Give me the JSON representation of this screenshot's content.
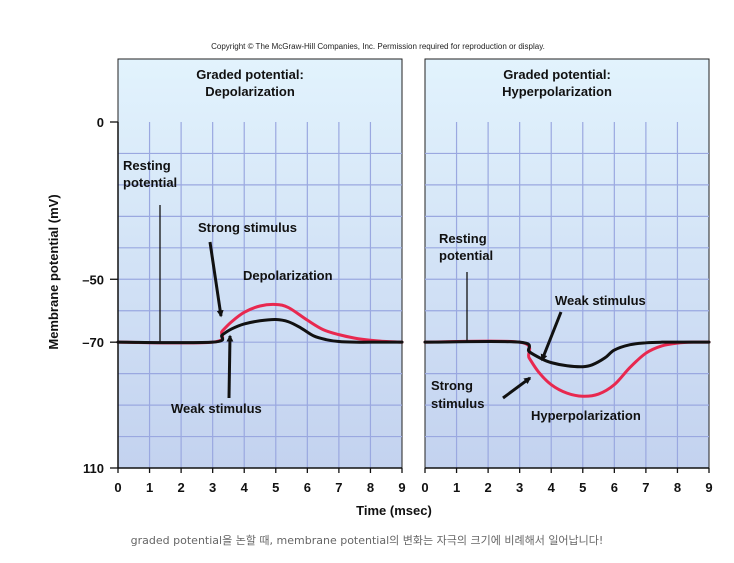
{
  "copyright": "Copyright © The McGraw-Hill Companies, Inc. Permission required for reproduction or display.",
  "caption": "graded potential을 논할 때, membrane potential의 변화는 자극의 크기에 비례해서 일어납니다!",
  "colors": {
    "strong": "#e8284f",
    "weak": "#111111",
    "grid": "#9aa8e0",
    "panel_top": "#e2f3fd",
    "panel_bottom": "#c3d2ef"
  },
  "chart_data": [
    {
      "type": "line",
      "title_lines": [
        "Graded potential:",
        "Depolarization"
      ],
      "xlabel": "Time (msec)",
      "ylabel": "Membrane potential (mV)",
      "xlim": [
        0,
        9
      ],
      "ylim": [
        -110,
        0
      ],
      "x_ticks": [
        "0",
        "1",
        "2",
        "3",
        "4",
        "5",
        "6",
        "7",
        "8",
        "9"
      ],
      "y_ticks": [
        {
          "value": 0,
          "label": "0"
        },
        {
          "value": -50,
          "label": "–50"
        },
        {
          "value": -70,
          "label": "–70"
        },
        {
          "value": -110,
          "label": "110"
        }
      ],
      "grid": true,
      "series": [
        {
          "key": "strong",
          "x": [
            0,
            3,
            3.3,
            3.6,
            4,
            4.5,
            5,
            5.4,
            6,
            6.5,
            7,
            7.5,
            8,
            8.5,
            9
          ],
          "y": [
            -70,
            -70,
            -66.5,
            -63.5,
            -60.5,
            -58.5,
            -58,
            -59,
            -63,
            -66,
            -67.6,
            -68.7,
            -69.4,
            -69.8,
            -70
          ]
        },
        {
          "key": "weak",
          "x": [
            0,
            3,
            3.3,
            3.6,
            4,
            4.5,
            5,
            5.4,
            5.8,
            6.2,
            6.6,
            7,
            7.5,
            8,
            9
          ],
          "y": [
            -70,
            -70,
            -67.7,
            -65.8,
            -64.2,
            -63.2,
            -62.8,
            -63.5,
            -65.5,
            -68,
            -69.2,
            -69.8,
            -70,
            -70,
            -70
          ]
        }
      ],
      "annotations": {
        "resting": [
          "Resting",
          "potential"
        ],
        "strong": "Strong stimulus",
        "weak": "Weak stimulus",
        "change": "Depolarization"
      }
    },
    {
      "type": "line",
      "title_lines": [
        "Graded potential:",
        "Hyperpolarization"
      ],
      "xlim": [
        0,
        9
      ],
      "ylim": [
        -110,
        0
      ],
      "x_ticks": [
        "0",
        "1",
        "2",
        "3",
        "4",
        "5",
        "6",
        "7",
        "8",
        "9"
      ],
      "grid": true,
      "series": [
        {
          "key": "strong",
          "x": [
            0,
            3,
            3.3,
            3.6,
            4,
            4.5,
            5,
            5.5,
            6,
            6.5,
            7,
            7.5,
            8,
            8.5,
            9
          ],
          "y": [
            -70,
            -70,
            -75,
            -79.5,
            -83.5,
            -86.2,
            -87.2,
            -86.5,
            -83.5,
            -78,
            -73.5,
            -71.2,
            -70.3,
            -70,
            -70
          ]
        },
        {
          "key": "weak",
          "x": [
            0,
            3,
            3.3,
            3.7,
            4,
            4.5,
            5,
            5.3,
            5.7,
            6,
            6.5,
            7,
            7.5,
            8,
            9
          ],
          "y": [
            -70,
            -70,
            -73,
            -75.3,
            -76.5,
            -77.5,
            -77.8,
            -77.2,
            -75,
            -72.5,
            -70.8,
            -70.2,
            -70,
            -70,
            -70
          ]
        }
      ],
      "annotations": {
        "resting": [
          "Resting",
          "potential"
        ],
        "strong": [
          "Strong",
          "stimulus"
        ],
        "weak": "Weak stimulus",
        "change": "Hyperpolarization"
      }
    }
  ]
}
